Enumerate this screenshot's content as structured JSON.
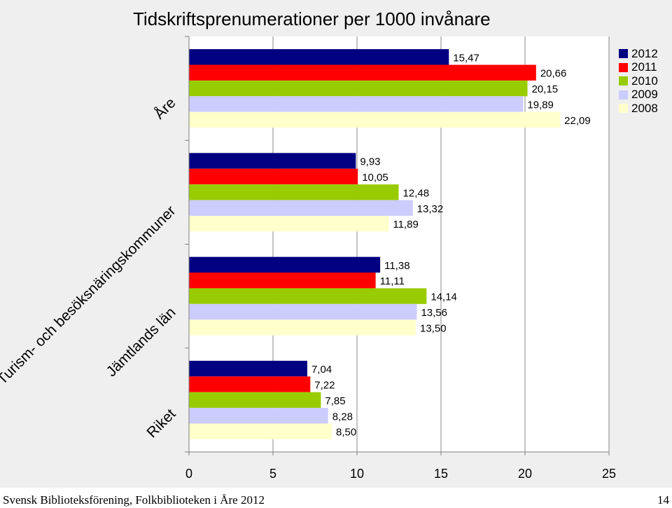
{
  "chart_data": {
    "type": "bar",
    "orientation": "horizontal",
    "title": "Tidskriftsprenumerationer per 1000 invånare",
    "categories": [
      "Åre",
      "Turism- och besöksnäringskommuner",
      "Jämtlands län",
      "Riket"
    ],
    "series": [
      {
        "name": "2012",
        "color": "#000080",
        "values": [
          15.47,
          9.93,
          11.38,
          7.04
        ],
        "labels": [
          "15,47",
          "9,93",
          "11,38",
          "7,04"
        ]
      },
      {
        "name": "2011",
        "color": "#ff0000",
        "values": [
          20.66,
          10.05,
          11.11,
          7.22
        ],
        "labels": [
          "20,66",
          "10,05",
          "11,11",
          "7,22"
        ]
      },
      {
        "name": "2010",
        "color": "#99cc00",
        "values": [
          20.15,
          12.48,
          14.14,
          7.85
        ],
        "labels": [
          "20,15",
          "12,48",
          "14,14",
          "7,85"
        ]
      },
      {
        "name": "2009",
        "color": "#ccccff",
        "values": [
          19.89,
          13.32,
          13.56,
          8.28
        ],
        "labels": [
          "19,89",
          "13,32",
          "13,56",
          "8,28"
        ]
      },
      {
        "name": "2008",
        "color": "#ffffcc",
        "values": [
          22.09,
          11.89,
          13.5,
          8.5
        ],
        "labels": [
          "22,09",
          "11,89",
          "13,50",
          "8,50"
        ]
      }
    ],
    "xlim": [
      0,
      25
    ],
    "xticks": [
      "0",
      "5",
      "10",
      "15",
      "20",
      "25"
    ],
    "grid": "vertical",
    "legend": "top-right"
  },
  "footer": {
    "left": "Svensk Biblioteksförening, Folkbiblioteken i Åre 2012",
    "right": "14"
  }
}
